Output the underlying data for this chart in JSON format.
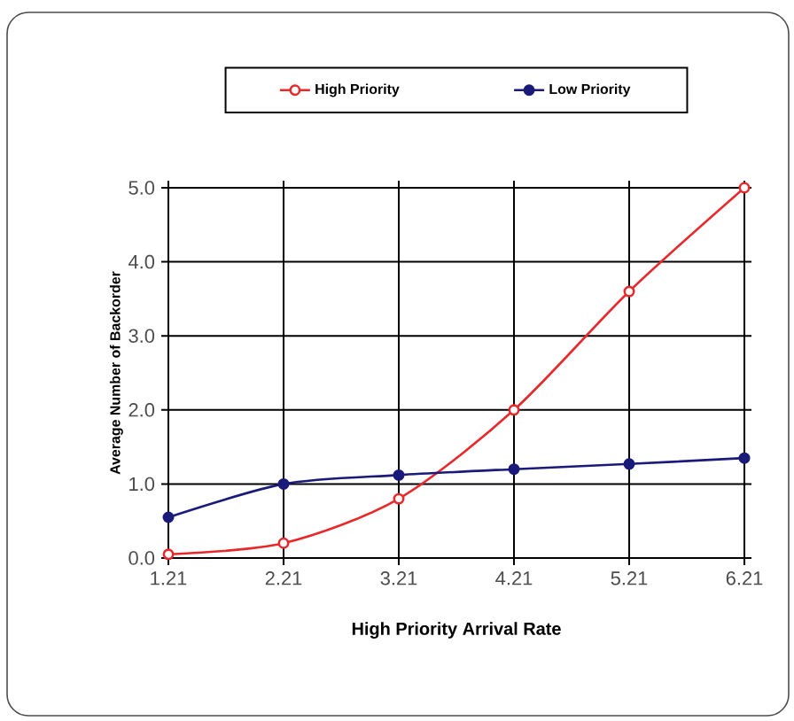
{
  "chart_data": {
    "type": "line",
    "xlabel": "High Priority Arrival Rate",
    "ylabel": "Average Number of Backorder",
    "x": [
      1.21,
      2.21,
      3.21,
      4.21,
      5.21,
      6.21
    ],
    "series": [
      {
        "name": "High Priority",
        "color": "#e8292b",
        "values": [
          0.05,
          0.2,
          0.8,
          2.0,
          3.6,
          5.0
        ]
      },
      {
        "name": "Low Priority",
        "color": "#1a1a7a",
        "values": [
          0.55,
          1.0,
          1.12,
          1.2,
          1.27,
          1.35
        ]
      }
    ],
    "xlim": [
      1.21,
      6.21
    ],
    "ylim": [
      0,
      5
    ],
    "xticks": [
      1.21,
      2.21,
      3.21,
      4.21,
      5.21,
      6.21
    ],
    "yticks": [
      {
        "value": 0,
        "label": "0.0"
      },
      {
        "value": 1,
        "label": "1.0"
      },
      {
        "value": 2,
        "label": "2.0"
      },
      {
        "value": 3,
        "label": "3.0"
      },
      {
        "value": 4,
        "label": "4.0"
      },
      {
        "value": 5,
        "label": "5.0"
      }
    ],
    "grid": true,
    "legend": "top",
    "marker": "circle",
    "line_style": "solid"
  }
}
